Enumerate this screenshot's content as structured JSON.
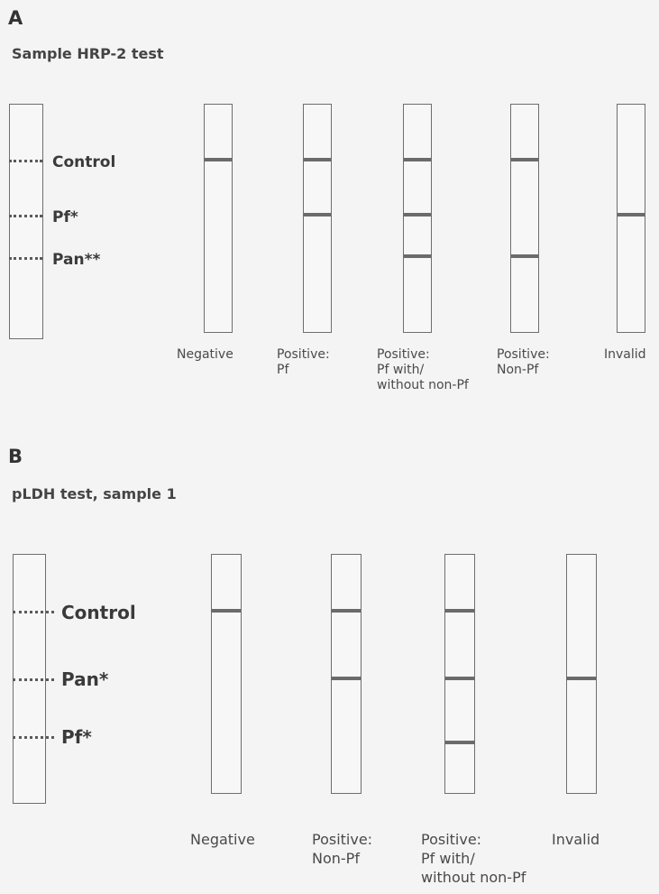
{
  "panel_a": {
    "letter": "A",
    "title": "Sample HRP-2 test",
    "key_lines": [
      "Control",
      "Pf*",
      "Pan**"
    ],
    "results": [
      {
        "caption": "Negative",
        "bands": [
          "Control"
        ]
      },
      {
        "caption": "Positive:\nPf",
        "bands": [
          "Control",
          "Pf*"
        ]
      },
      {
        "caption": "Positive:\nPf with/\nwithout non-Pf",
        "bands": [
          "Control",
          "Pf*",
          "Pan**"
        ]
      },
      {
        "caption": "Positive:\nNon-Pf",
        "bands": [
          "Control",
          "Pan**"
        ]
      },
      {
        "caption": "Invalid",
        "bands": [
          "Pf*"
        ]
      }
    ]
  },
  "panel_b": {
    "letter": "B",
    "title": "pLDH test, sample 1",
    "key_lines": [
      "Control",
      "Pan*",
      "Pf*"
    ],
    "results": [
      {
        "caption": "Negative",
        "bands": [
          "Control"
        ]
      },
      {
        "caption": "Positive:\nNon-Pf",
        "bands": [
          "Control",
          "Pan*"
        ]
      },
      {
        "caption": "Positive:\nPf with/\nwithout non-Pf",
        "bands": [
          "Control",
          "Pan*",
          "Pf*"
        ]
      },
      {
        "caption": "Invalid",
        "bands": [
          "Pan*"
        ]
      }
    ]
  },
  "colors": {
    "background": "#f4f4f4",
    "strip_border": "#6e6e6e",
    "band": "#6b6b6b"
  }
}
